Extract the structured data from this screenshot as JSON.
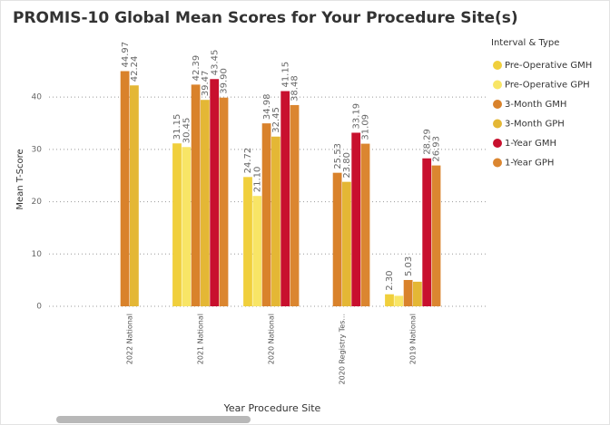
{
  "chart_data": {
    "type": "bar",
    "title": "PROMIS-10 Global Mean Scores for Your Procedure Site(s)",
    "x_label": "Year Procedure Site",
    "y_label": "Mean T-Score",
    "legend_title": "Interval & Type",
    "categories": [
      "2022 National",
      "2021 National",
      "2020 National",
      "2020 Registry Tes...",
      "2019 National"
    ],
    "ylim": [
      0,
      48
    ],
    "yticks": [
      0,
      10,
      20,
      30,
      40
    ],
    "grid": true,
    "legend": "right",
    "series": [
      {
        "name": "Pre-Operative GMH",
        "color": "#f0cf3c",
        "values": [
          null,
          31.15,
          24.72,
          null,
          2.3
        ],
        "value_labels": [
          null,
          "31.15",
          "24.72",
          null,
          "2.30"
        ]
      },
      {
        "name": "Pre-Operative GPH",
        "color": "#f8e566",
        "values": [
          null,
          30.45,
          21.1,
          null,
          2.0
        ],
        "value_labels": [
          null,
          "30.45",
          "21.10",
          null,
          null
        ]
      },
      {
        "name": "3-Month GMH",
        "color": "#d9822b",
        "values": [
          44.97,
          42.39,
          34.98,
          25.53,
          5.03
        ],
        "value_labels": [
          "44.97",
          "42.39",
          "34.98",
          "25.53",
          "5.03"
        ]
      },
      {
        "name": "3-Month GPH",
        "color": "#e4b735",
        "values": [
          42.24,
          39.47,
          32.45,
          23.8,
          4.7
        ],
        "value_labels": [
          "42.24",
          "39.47",
          "32.45",
          "23.80",
          null
        ]
      },
      {
        "name": "1-Year GMH",
        "color": "#c8102e",
        "values": [
          null,
          43.45,
          41.15,
          33.19,
          28.29
        ],
        "value_labels": [
          null,
          "43.45",
          "41.15",
          "33.19",
          "28.29"
        ]
      },
      {
        "name": "1-Year GPH",
        "color": "#db8630",
        "values": [
          null,
          39.9,
          38.48,
          31.09,
          26.93
        ],
        "value_labels": [
          null,
          "39.90",
          "38.48",
          "31.09",
          "26.93"
        ]
      }
    ]
  }
}
